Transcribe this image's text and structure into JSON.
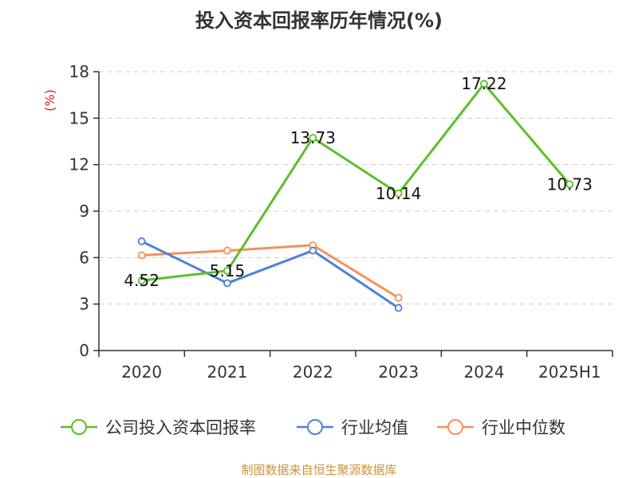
{
  "chart_data": {
    "type": "line",
    "title": "投入资本回报率历年情况(%)",
    "ylabel": "(%)",
    "xlabel": "",
    "categories": [
      "2020",
      "2021",
      "2022",
      "2023",
      "2024",
      "2025H1"
    ],
    "ylim": [
      0,
      18
    ],
    "yticks": [
      0,
      3,
      6,
      9,
      12,
      15,
      18
    ],
    "grid": true,
    "legend_position": "bottom",
    "series": [
      {
        "name": "公司投入资本回报率",
        "color": "#5cbf2a",
        "values": [
          4.52,
          5.15,
          13.73,
          10.14,
          17.22,
          10.73
        ],
        "labels": [
          "4.52",
          "5.15",
          "13.73",
          "10.14",
          "17.22",
          "10.73"
        ]
      },
      {
        "name": "行业均值",
        "color": "#4f80d9",
        "values": [
          7.05,
          4.35,
          6.45,
          2.75,
          null,
          null
        ]
      },
      {
        "name": "行业中位数",
        "color": "#f5905a",
        "values": [
          6.15,
          6.45,
          6.8,
          3.4,
          null,
          null
        ]
      }
    ]
  },
  "source": "制图数据来自恒生聚源数据库"
}
